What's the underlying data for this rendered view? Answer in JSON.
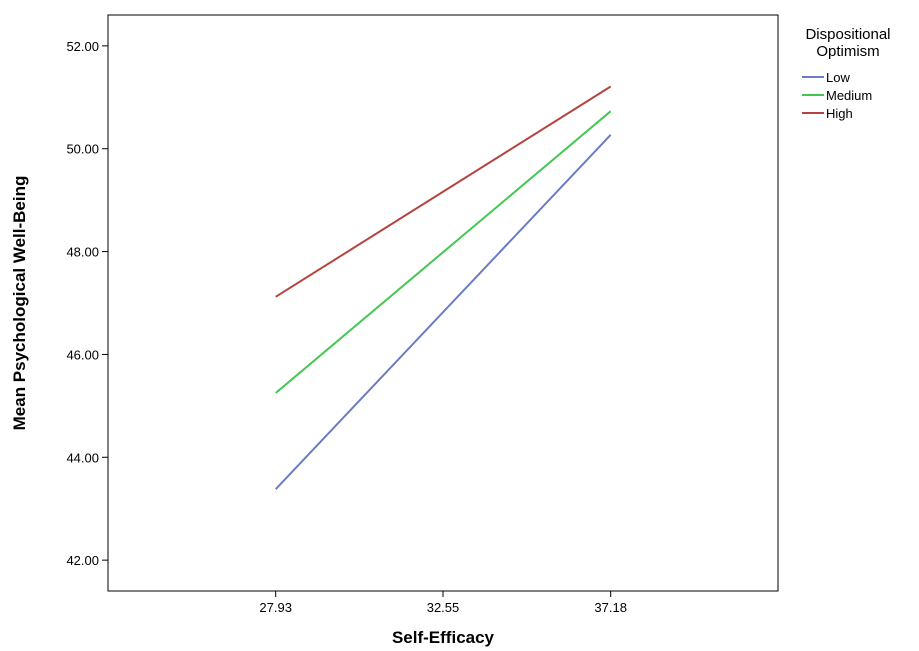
{
  "chart_data": {
    "type": "line",
    "title": "",
    "xlabel": "Self-Efficacy",
    "ylabel": "Mean Psychological Well-Being",
    "x": [
      27.93,
      32.55,
      37.18
    ],
    "x_tick_labels": [
      "27.93",
      "32.55",
      "37.18"
    ],
    "xlim": [
      23.3,
      41.8
    ],
    "ylim": [
      41.4,
      52.6
    ],
    "y_ticks": [
      42,
      44,
      46,
      48,
      50,
      52
    ],
    "y_tick_labels": [
      "42.00",
      "44.00",
      "46.00",
      "48.00",
      "50.00",
      "52.00"
    ],
    "grid": false,
    "legend": {
      "title_lines": [
        "Dispositional",
        "Optimism"
      ],
      "placement": "top-right outside"
    },
    "series": [
      {
        "name": "Low",
        "color": "#6b7bc4",
        "points": [
          [
            27.93,
            43.38
          ],
          [
            37.18,
            50.27
          ]
        ]
      },
      {
        "name": "Medium",
        "color": "#44c752",
        "points": [
          [
            27.93,
            45.25
          ],
          [
            37.18,
            50.73
          ]
        ]
      },
      {
        "name": "High",
        "color": "#b5443e",
        "points": [
          [
            27.93,
            47.12
          ],
          [
            37.18,
            51.21
          ]
        ]
      }
    ]
  }
}
